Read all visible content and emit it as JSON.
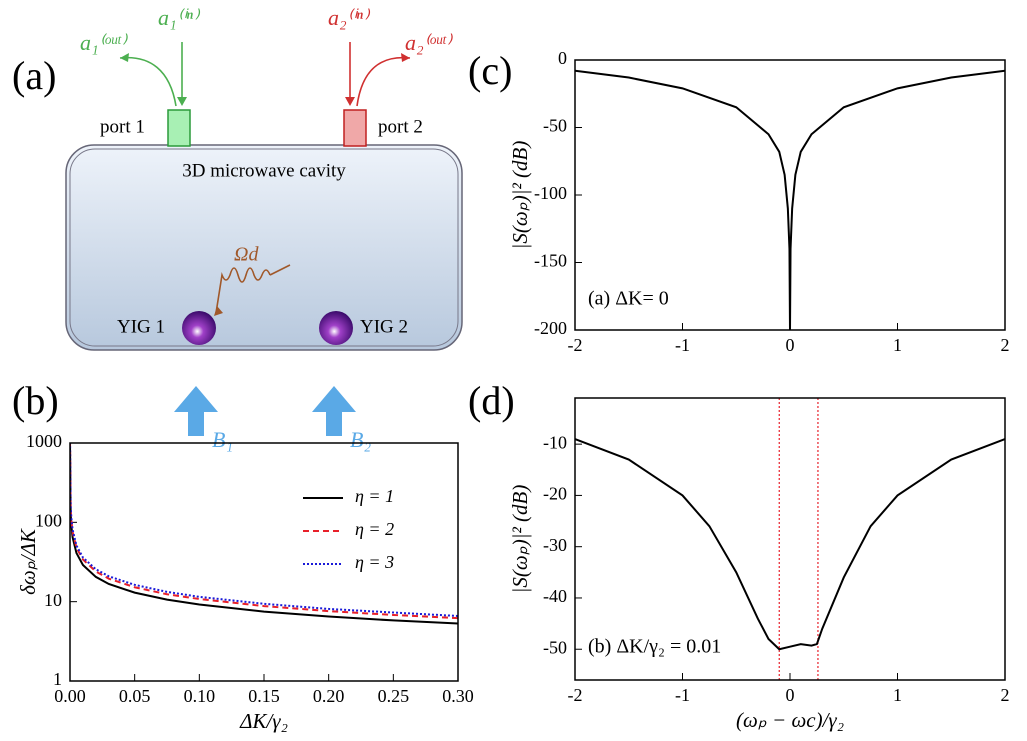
{
  "diagram": {
    "label": "(a)",
    "cavity": "3D microwave cavity",
    "port1": "port 1",
    "port2": "port 2",
    "yig1": "YIG 1",
    "yig2": "YIG 2",
    "drive": "Ωd",
    "field1": "B₁",
    "field2": "B₂",
    "a1_out": "a₁⁽ᵒᵘᵗ⁾",
    "a1_in": "a₁⁽ⁱⁿ⁾",
    "a2_in": "a₂⁽ⁱⁿ⁾",
    "a2_out": "a₂⁽ᵒᵘᵗ⁾"
  },
  "chart_data": [
    {
      "type": "line",
      "label": "(b)",
      "xlabel": "ΔK/γ₂",
      "ylabel": "δωₚ/ΔK",
      "log_y": true,
      "legend": "upper right",
      "x": [
        1e-05,
        0.0005,
        0.001,
        0.002,
        0.005,
        0.01,
        0.02,
        0.03,
        0.05,
        0.075,
        0.1,
        0.15,
        0.2,
        0.25,
        0.3
      ],
      "series": [
        {
          "name": "η = 1",
          "color": "#000000",
          "linestyle": "solid",
          "values": [
            917,
            130,
            92,
            65,
            41,
            29,
            20.5,
            16.7,
            13,
            10.6,
            9.2,
            7.5,
            6.5,
            5.8,
            5.3
          ]
        },
        {
          "name": "η = 2",
          "color": "#e8202a",
          "linestyle": "dashed",
          "values": [
            1073,
            152,
            108,
            76,
            48,
            34,
            24,
            19.5,
            15.2,
            12.4,
            10.8,
            8.8,
            7.6,
            6.8,
            6.2
          ]
        },
        {
          "name": "η = 3",
          "color": "#1a1ad8",
          "linestyle": "dotted",
          "values": [
            1146,
            163,
            115,
            81,
            51,
            36,
            25.6,
            20.9,
            16.3,
            13.3,
            11.5,
            9.4,
            8.1,
            7.3,
            6.6
          ]
        }
      ],
      "xlim": [
        0,
        0.3
      ],
      "ylim": [
        1,
        1000
      ],
      "xticks": [
        {
          "value": 0,
          "label": "0.00"
        },
        {
          "value": 0.05,
          "label": "0.05"
        },
        {
          "value": 0.1,
          "label": "0.10"
        },
        {
          "value": 0.15,
          "label": "0.15"
        },
        {
          "value": 0.2,
          "label": "0.20"
        },
        {
          "value": 0.25,
          "label": "0.25"
        },
        {
          "value": 0.3,
          "label": "0.30"
        }
      ],
      "yticks": [
        1,
        10,
        100,
        1000
      ]
    },
    {
      "type": "line",
      "label": "(c)",
      "ylabel": "|S(ωₚ)|² (dB)",
      "annotation": "(a) ΔK= 0",
      "color": "#000000",
      "x": [
        -2,
        -1.5,
        -1,
        -0.5,
        -0.2,
        -0.1,
        -0.05,
        -0.02,
        -0.005,
        0,
        0.005,
        0.02,
        0.05,
        0.1,
        0.2,
        0.5,
        1,
        1.5,
        2
      ],
      "values": [
        -8,
        -13,
        -21,
        -35,
        -55,
        -68,
        -85,
        -110,
        -140,
        -200,
        -140,
        -110,
        -85,
        -68,
        -55,
        -35,
        -21,
        -13,
        -8
      ],
      "xlim": [
        -2,
        2
      ],
      "ylim": [
        -200,
        0
      ],
      "xticks": [
        -2,
        -1,
        0,
        1,
        2
      ],
      "yticks": [
        0,
        -50,
        -100,
        -150,
        -200
      ]
    },
    {
      "type": "line",
      "label": "(d)",
      "xlabel": "(ωₚ − ωc)/γ₂",
      "ylabel": "|S(ωₚ)|² (dB)",
      "annotation": "(b) ΔK/γ₂ = 0.01",
      "color": "#000000",
      "x": [
        -2,
        -1.5,
        -1,
        -0.75,
        -0.5,
        -0.3,
        -0.2,
        -0.1,
        0,
        0.1,
        0.2,
        0.25,
        0.3,
        0.5,
        0.75,
        1,
        1.5,
        2
      ],
      "values": [
        -9,
        -13,
        -20,
        -26,
        -35,
        -44,
        -48,
        -50,
        -49.5,
        -49,
        -49.3,
        -49,
        -46,
        -36,
        -26,
        -20,
        -13,
        -9
      ],
      "vlines": [
        -0.1,
        0.26
      ],
      "vline_color": "#e8202a",
      "xlim": [
        -2,
        2
      ],
      "ylim": [
        -56,
        -1
      ],
      "xticks": [
        -2,
        -1,
        0,
        1,
        2
      ],
      "yticks": [
        -10,
        -20,
        -30,
        -40,
        -50
      ]
    }
  ]
}
